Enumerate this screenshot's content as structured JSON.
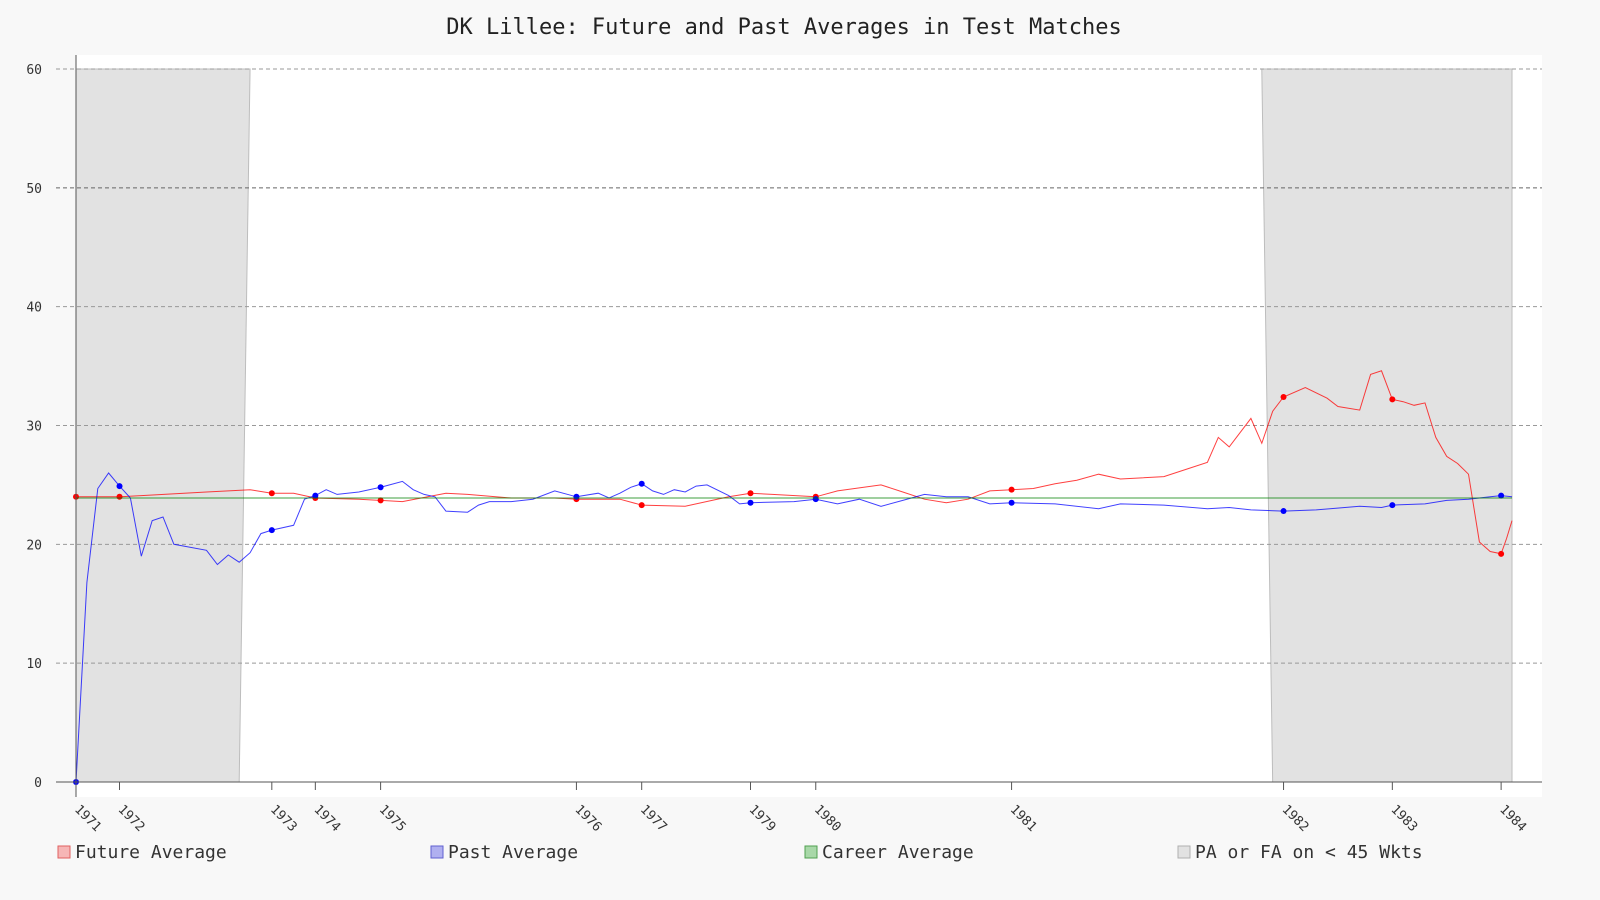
{
  "chart_data": {
    "type": "line",
    "title": "DK Lillee: Future and Past Averages in Test Matches",
    "xlabel": "",
    "ylabel": "",
    "ylim": [
      0,
      60
    ],
    "yticks": [
      0,
      10,
      20,
      30,
      40,
      50,
      60
    ],
    "grid": true,
    "legend_position": "bottom",
    "x_count": 140,
    "year_ticks": [
      {
        "label": "1971",
        "index": 0
      },
      {
        "label": "1972",
        "index": 4
      },
      {
        "label": "1973",
        "index": 18
      },
      {
        "label": "1974",
        "index": 22
      },
      {
        "label": "1975",
        "index": 28
      },
      {
        "label": "1976",
        "index": 46
      },
      {
        "label": "1977",
        "index": 52
      },
      {
        "label": "1979",
        "index": 62
      },
      {
        "label": "1980",
        "index": 68
      },
      {
        "label": "1981",
        "index": 86
      },
      {
        "label": "1982",
        "index": 111
      },
      {
        "label": "1983",
        "index": 121
      },
      {
        "label": "1984",
        "index": 131
      }
    ],
    "series": [
      {
        "name": "Future Average",
        "color": "#ff0000",
        "anchors": [
          [
            0,
            24.0
          ],
          [
            4,
            24.0
          ],
          [
            6,
            24.1
          ],
          [
            12,
            24.4
          ],
          [
            16,
            24.6
          ],
          [
            18,
            24.3
          ],
          [
            20,
            24.3
          ],
          [
            22,
            23.9
          ],
          [
            26,
            23.8
          ],
          [
            30,
            23.6
          ],
          [
            34,
            24.3
          ],
          [
            36,
            24.2
          ],
          [
            40,
            23.9
          ],
          [
            44,
            23.9
          ],
          [
            46,
            23.8
          ],
          [
            50,
            23.8
          ],
          [
            52,
            23.3
          ],
          [
            56,
            23.2
          ],
          [
            60,
            24.0
          ],
          [
            62,
            24.3
          ],
          [
            64,
            24.2
          ],
          [
            68,
            24.0
          ],
          [
            70,
            24.5
          ],
          [
            74,
            25.0
          ],
          [
            76,
            24.4
          ],
          [
            78,
            23.8
          ],
          [
            80,
            23.5
          ],
          [
            82,
            23.8
          ],
          [
            84,
            24.5
          ],
          [
            86,
            24.6
          ],
          [
            88,
            24.7
          ],
          [
            90,
            25.1
          ],
          [
            92,
            25.4
          ],
          [
            94,
            25.9
          ],
          [
            96,
            25.5
          ],
          [
            100,
            25.7
          ],
          [
            102,
            26.3
          ],
          [
            104,
            26.9
          ],
          [
            105,
            29.0
          ],
          [
            106,
            28.2
          ],
          [
            108,
            30.6
          ],
          [
            109,
            28.5
          ],
          [
            110,
            31.2
          ],
          [
            111,
            32.4
          ],
          [
            113,
            33.2
          ],
          [
            115,
            32.3
          ],
          [
            116,
            31.6
          ],
          [
            118,
            31.3
          ],
          [
            119,
            34.3
          ],
          [
            120,
            34.6
          ],
          [
            121,
            32.2
          ],
          [
            122,
            32.0
          ],
          [
            123,
            31.7
          ],
          [
            124,
            31.9
          ],
          [
            125,
            29.0
          ],
          [
            126,
            27.4
          ],
          [
            127,
            26.8
          ],
          [
            128,
            25.9
          ],
          [
            129,
            20.2
          ],
          [
            130,
            19.4
          ],
          [
            131,
            19.2
          ],
          [
            131.5,
            20.5
          ],
          [
            132,
            22.0
          ]
        ],
        "markers": [
          [
            0,
            24.0
          ],
          [
            4,
            24.0
          ],
          [
            18,
            24.3
          ],
          [
            22,
            23.9
          ],
          [
            28,
            23.7
          ],
          [
            46,
            23.8
          ],
          [
            52,
            23.3
          ],
          [
            62,
            24.3
          ],
          [
            68,
            24.0
          ],
          [
            86,
            24.6
          ],
          [
            111,
            32.4
          ],
          [
            121,
            32.2
          ],
          [
            131,
            19.2
          ]
        ]
      },
      {
        "name": "Past Average",
        "color": "#0000ff",
        "anchors": [
          [
            0,
            0
          ],
          [
            1,
            16.8
          ],
          [
            2,
            24.7
          ],
          [
            3,
            26.0
          ],
          [
            4,
            24.9
          ],
          [
            5,
            23.9
          ],
          [
            6,
            19.0
          ],
          [
            7,
            22.0
          ],
          [
            8,
            22.3
          ],
          [
            9,
            20.0
          ],
          [
            12,
            19.5
          ],
          [
            13,
            18.3
          ],
          [
            14,
            19.1
          ],
          [
            15,
            18.5
          ],
          [
            16,
            19.3
          ],
          [
            17,
            20.9
          ],
          [
            18,
            21.2
          ],
          [
            20,
            21.6
          ],
          [
            21,
            23.8
          ],
          [
            22,
            24.1
          ],
          [
            23,
            24.6
          ],
          [
            24,
            24.2
          ],
          [
            26,
            24.4
          ],
          [
            28,
            24.8
          ],
          [
            30,
            25.3
          ],
          [
            31,
            24.6
          ],
          [
            32,
            24.2
          ],
          [
            33,
            24.0
          ],
          [
            34,
            22.8
          ],
          [
            36,
            22.7
          ],
          [
            37,
            23.3
          ],
          [
            38,
            23.6
          ],
          [
            40,
            23.6
          ],
          [
            42,
            23.8
          ],
          [
            44,
            24.5
          ],
          [
            46,
            24.0
          ],
          [
            48,
            24.3
          ],
          [
            49,
            23.9
          ],
          [
            50,
            24.3
          ],
          [
            51,
            24.8
          ],
          [
            52,
            25.1
          ],
          [
            53,
            24.5
          ],
          [
            54,
            24.2
          ],
          [
            55,
            24.6
          ],
          [
            56,
            24.4
          ],
          [
            57,
            24.9
          ],
          [
            58,
            25.0
          ],
          [
            60,
            24.1
          ],
          [
            61,
            23.4
          ],
          [
            62,
            23.5
          ],
          [
            66,
            23.6
          ],
          [
            68,
            23.8
          ],
          [
            70,
            23.4
          ],
          [
            72,
            23.8
          ],
          [
            74,
            23.2
          ],
          [
            76,
            23.7
          ],
          [
            78,
            24.2
          ],
          [
            80,
            24.0
          ],
          [
            82,
            24.0
          ],
          [
            84,
            23.4
          ],
          [
            86,
            23.5
          ],
          [
            90,
            23.4
          ],
          [
            94,
            23.0
          ],
          [
            96,
            23.4
          ],
          [
            100,
            23.3
          ],
          [
            104,
            23.0
          ],
          [
            106,
            23.1
          ],
          [
            108,
            22.9
          ],
          [
            111,
            22.8
          ],
          [
            114,
            22.9
          ],
          [
            118,
            23.2
          ],
          [
            120,
            23.1
          ],
          [
            121,
            23.3
          ],
          [
            124,
            23.4
          ],
          [
            126,
            23.7
          ],
          [
            128,
            23.8
          ],
          [
            130,
            24.0
          ],
          [
            131,
            24.1
          ],
          [
            132,
            24.0
          ]
        ],
        "markers": [
          [
            0,
            0
          ],
          [
            4,
            24.9
          ],
          [
            18,
            21.2
          ],
          [
            22,
            24.1
          ],
          [
            28,
            24.8
          ],
          [
            46,
            24.0
          ],
          [
            52,
            25.1
          ],
          [
            62,
            23.5
          ],
          [
            68,
            23.8
          ],
          [
            86,
            23.5
          ],
          [
            111,
            22.8
          ],
          [
            121,
            23.3
          ],
          [
            131,
            24.1
          ]
        ]
      },
      {
        "name": "Career Average",
        "color": "#008000",
        "value": 23.9
      }
    ],
    "shaded_regions": [
      {
        "label": "PA or FA on < 45 Wkts",
        "top_start": 0,
        "top_end": 16,
        "bottom_start": 0,
        "bottom_end": 15
      },
      {
        "label": "PA or FA on < 45 Wkts",
        "top_start": 109,
        "top_end": 132,
        "bottom_start": 110,
        "bottom_end": 132
      }
    ],
    "legend": [
      {
        "label": "Future Average",
        "fill": "#f6b6b6",
        "stroke": "#e06060"
      },
      {
        "label": "Past Average",
        "fill": "#b0b0f0",
        "stroke": "#6060d0"
      },
      {
        "label": "Career Average",
        "fill": "#a8d8a8",
        "stroke": "#50a050"
      },
      {
        "label": "PA or FA on < 45 Wkts",
        "fill": "#e2e2e2",
        "stroke": "#b0b0b0"
      }
    ]
  }
}
